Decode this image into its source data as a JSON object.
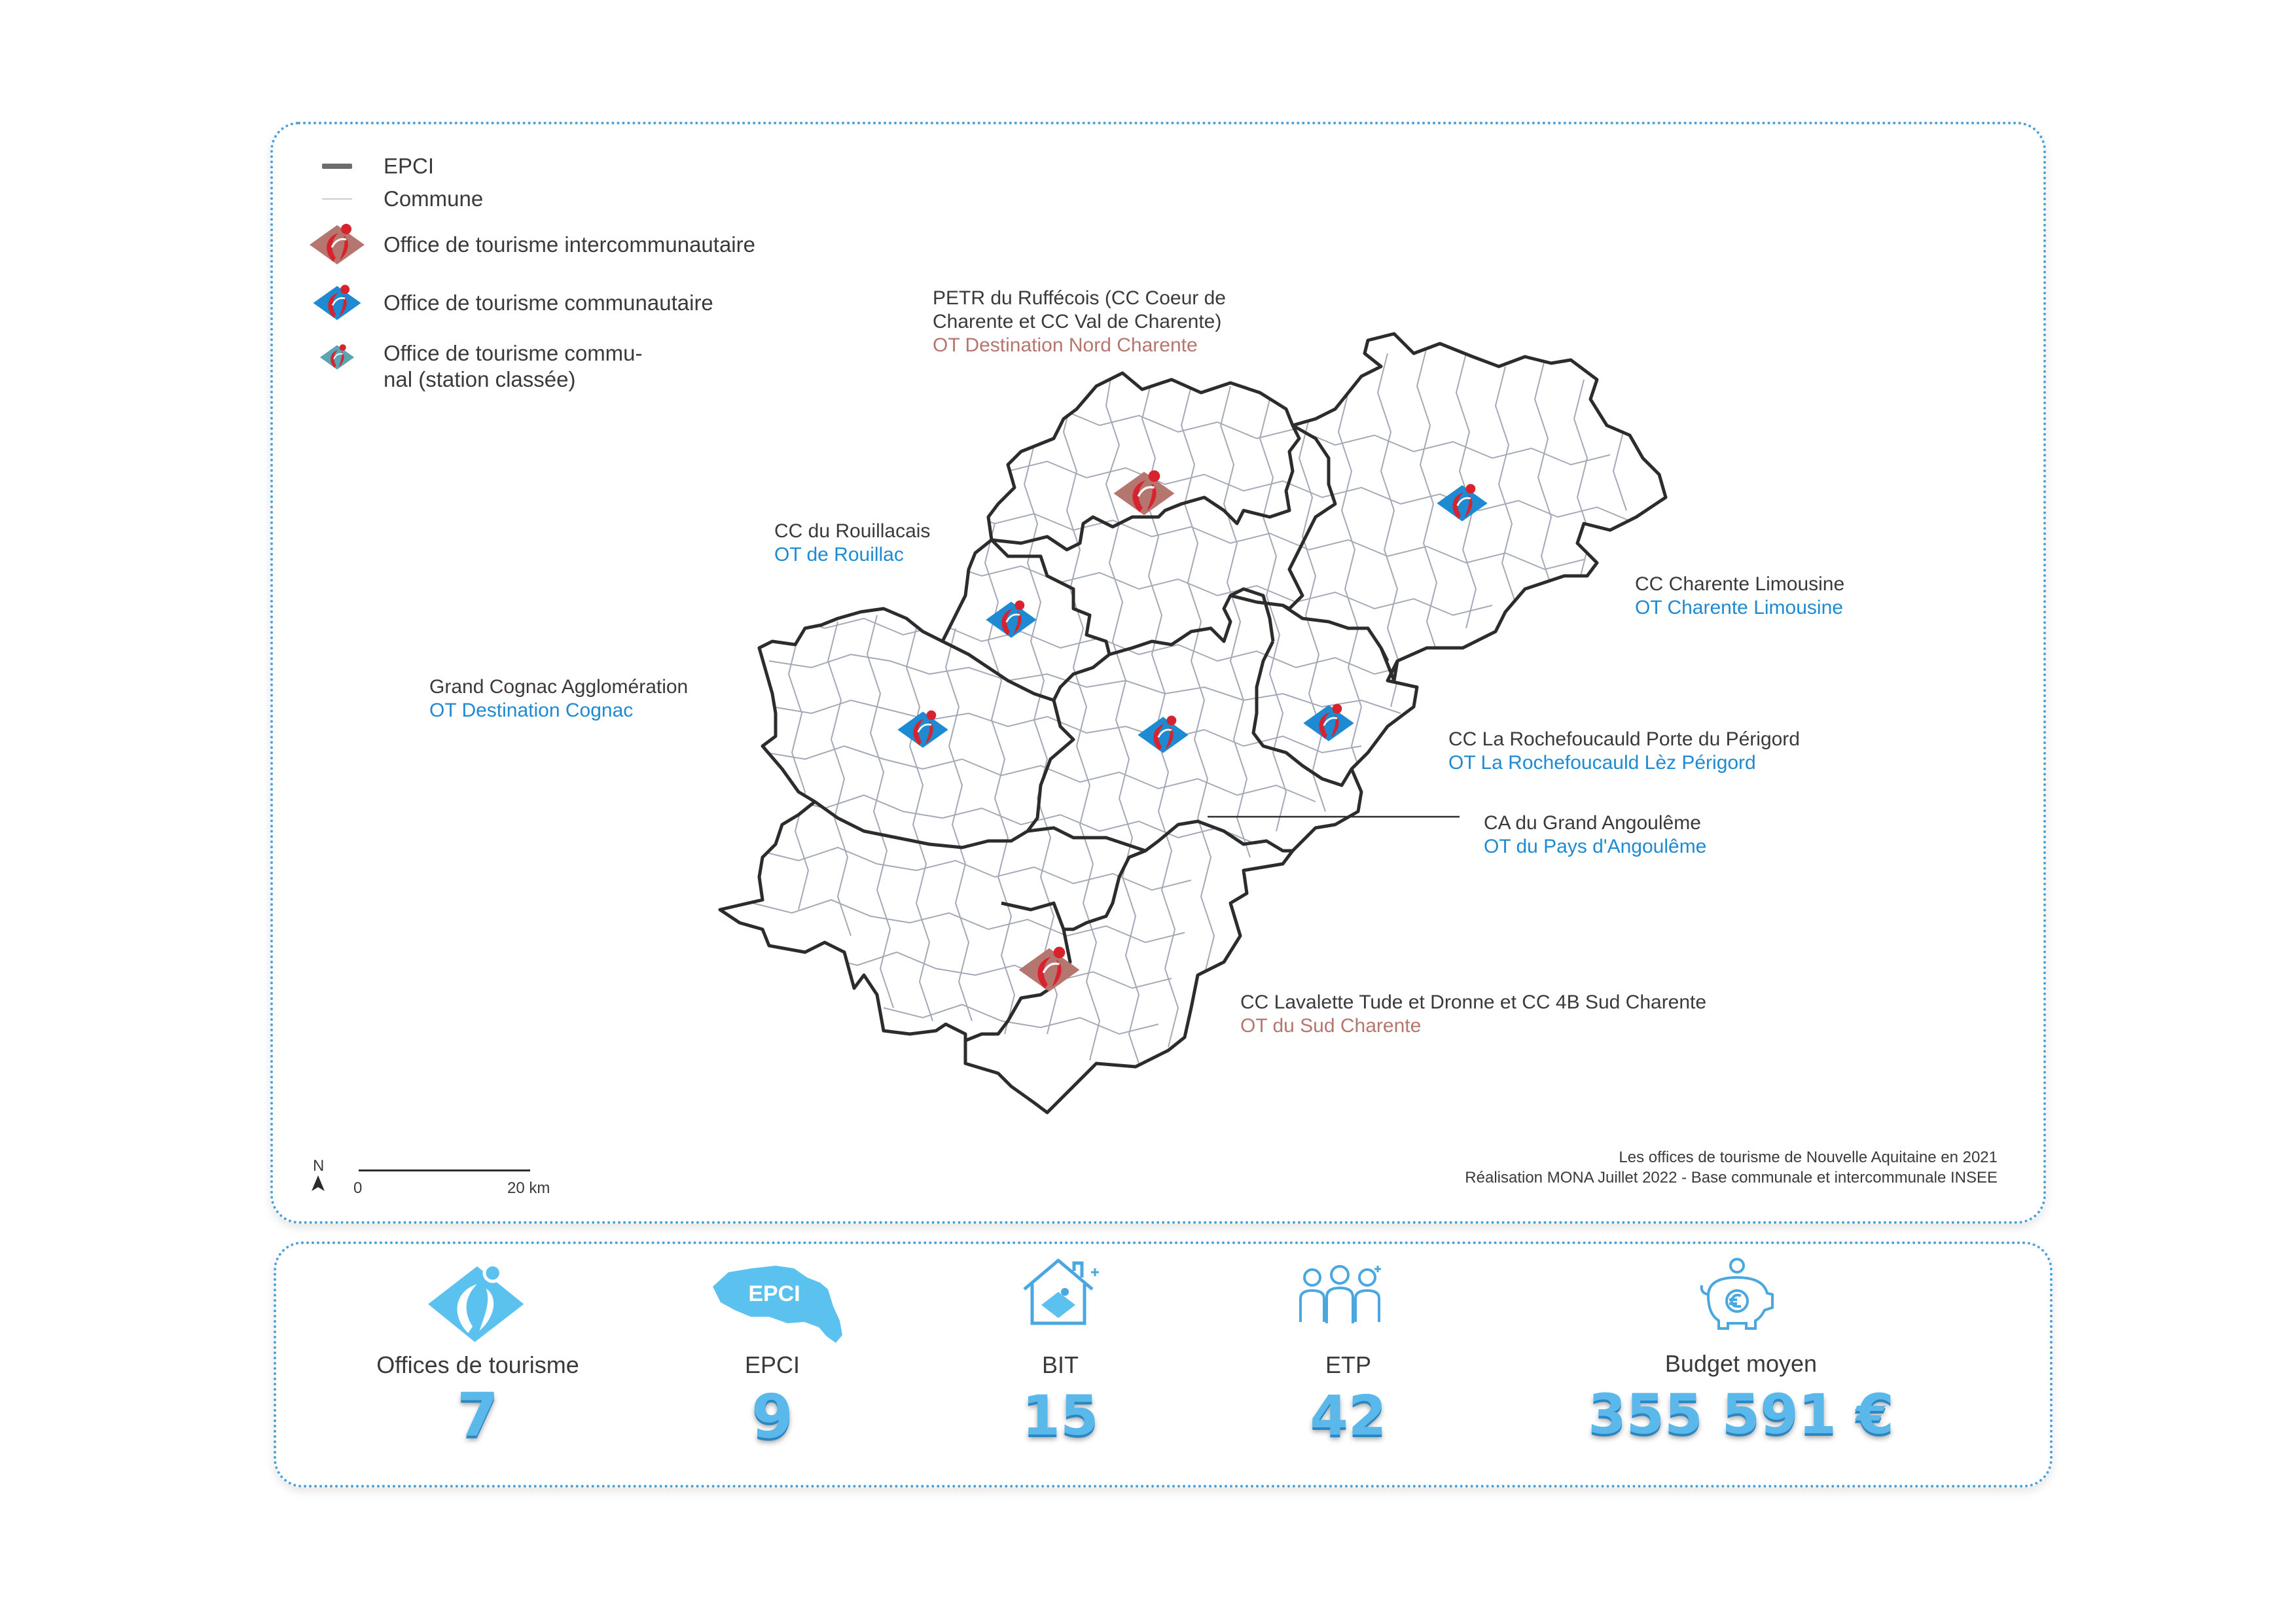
{
  "colors": {
    "accent_blue": "#1e8ad2",
    "inter_brown": "#b5766f",
    "communal_teal": "#5aa5b4",
    "logo_red": "#d8232f",
    "panel_border": "#4aa0dc",
    "stat_blue": "#5bb8ea"
  },
  "legend": {
    "epci": "EPCI",
    "commune": "Commune",
    "intercommunautaire": "Office de tourisme intercommunautaire",
    "communautaire": "Office de tourisme communautaire",
    "communal_line1": "Office de tourisme commu-",
    "communal_line2": "nal (station classée)"
  },
  "labels": {
    "ruffecois_1": "PETR du Ruffécois (CC Coeur de",
    "ruffecois_2": "Charente et CC Val de Charente)",
    "ruffecois_ot": "OT Destination Nord Charente",
    "rouillacais": "CC du Rouillacais",
    "rouillacais_ot": "OT de Rouillac",
    "limousine": "CC Charente Limousine",
    "limousine_ot": "OT Charente Limousine",
    "cognac": "Grand Cognac Agglomération",
    "cognac_ot": "OT Destination Cognac",
    "rochefoucauld": "CC La Rochefoucauld Porte du Périgord",
    "rochefoucauld_ot": "OT La Rochefoucauld Lèz Périgord",
    "angouleme": "CA du Grand Angoulême",
    "angouleme_ot": "OT du Pays d'Angoulême",
    "sud": "CC Lavalette Tude et Dronne et CC 4B Sud Charente",
    "sud_ot": "OT du Sud Charente"
  },
  "scale": {
    "north": "N",
    "zero": "0",
    "km": "20 km"
  },
  "source": {
    "line1": "Les offices de tourisme de Nouvelle Aquitaine en 2021",
    "line2": "Réalisation MONA Juillet 2022 - Base communale et intercommunale INSEE"
  },
  "stats": {
    "offices_label": "Offices de tourisme",
    "offices_value": "7",
    "epci_label": "EPCI",
    "epci_icon_text": "EPCI",
    "epci_value": "9",
    "bit_label": "BIT",
    "bit_value": "15",
    "etp_label": "ETP",
    "etp_value": "42",
    "budget_label": "Budget moyen",
    "budget_value": "355 591 €"
  }
}
